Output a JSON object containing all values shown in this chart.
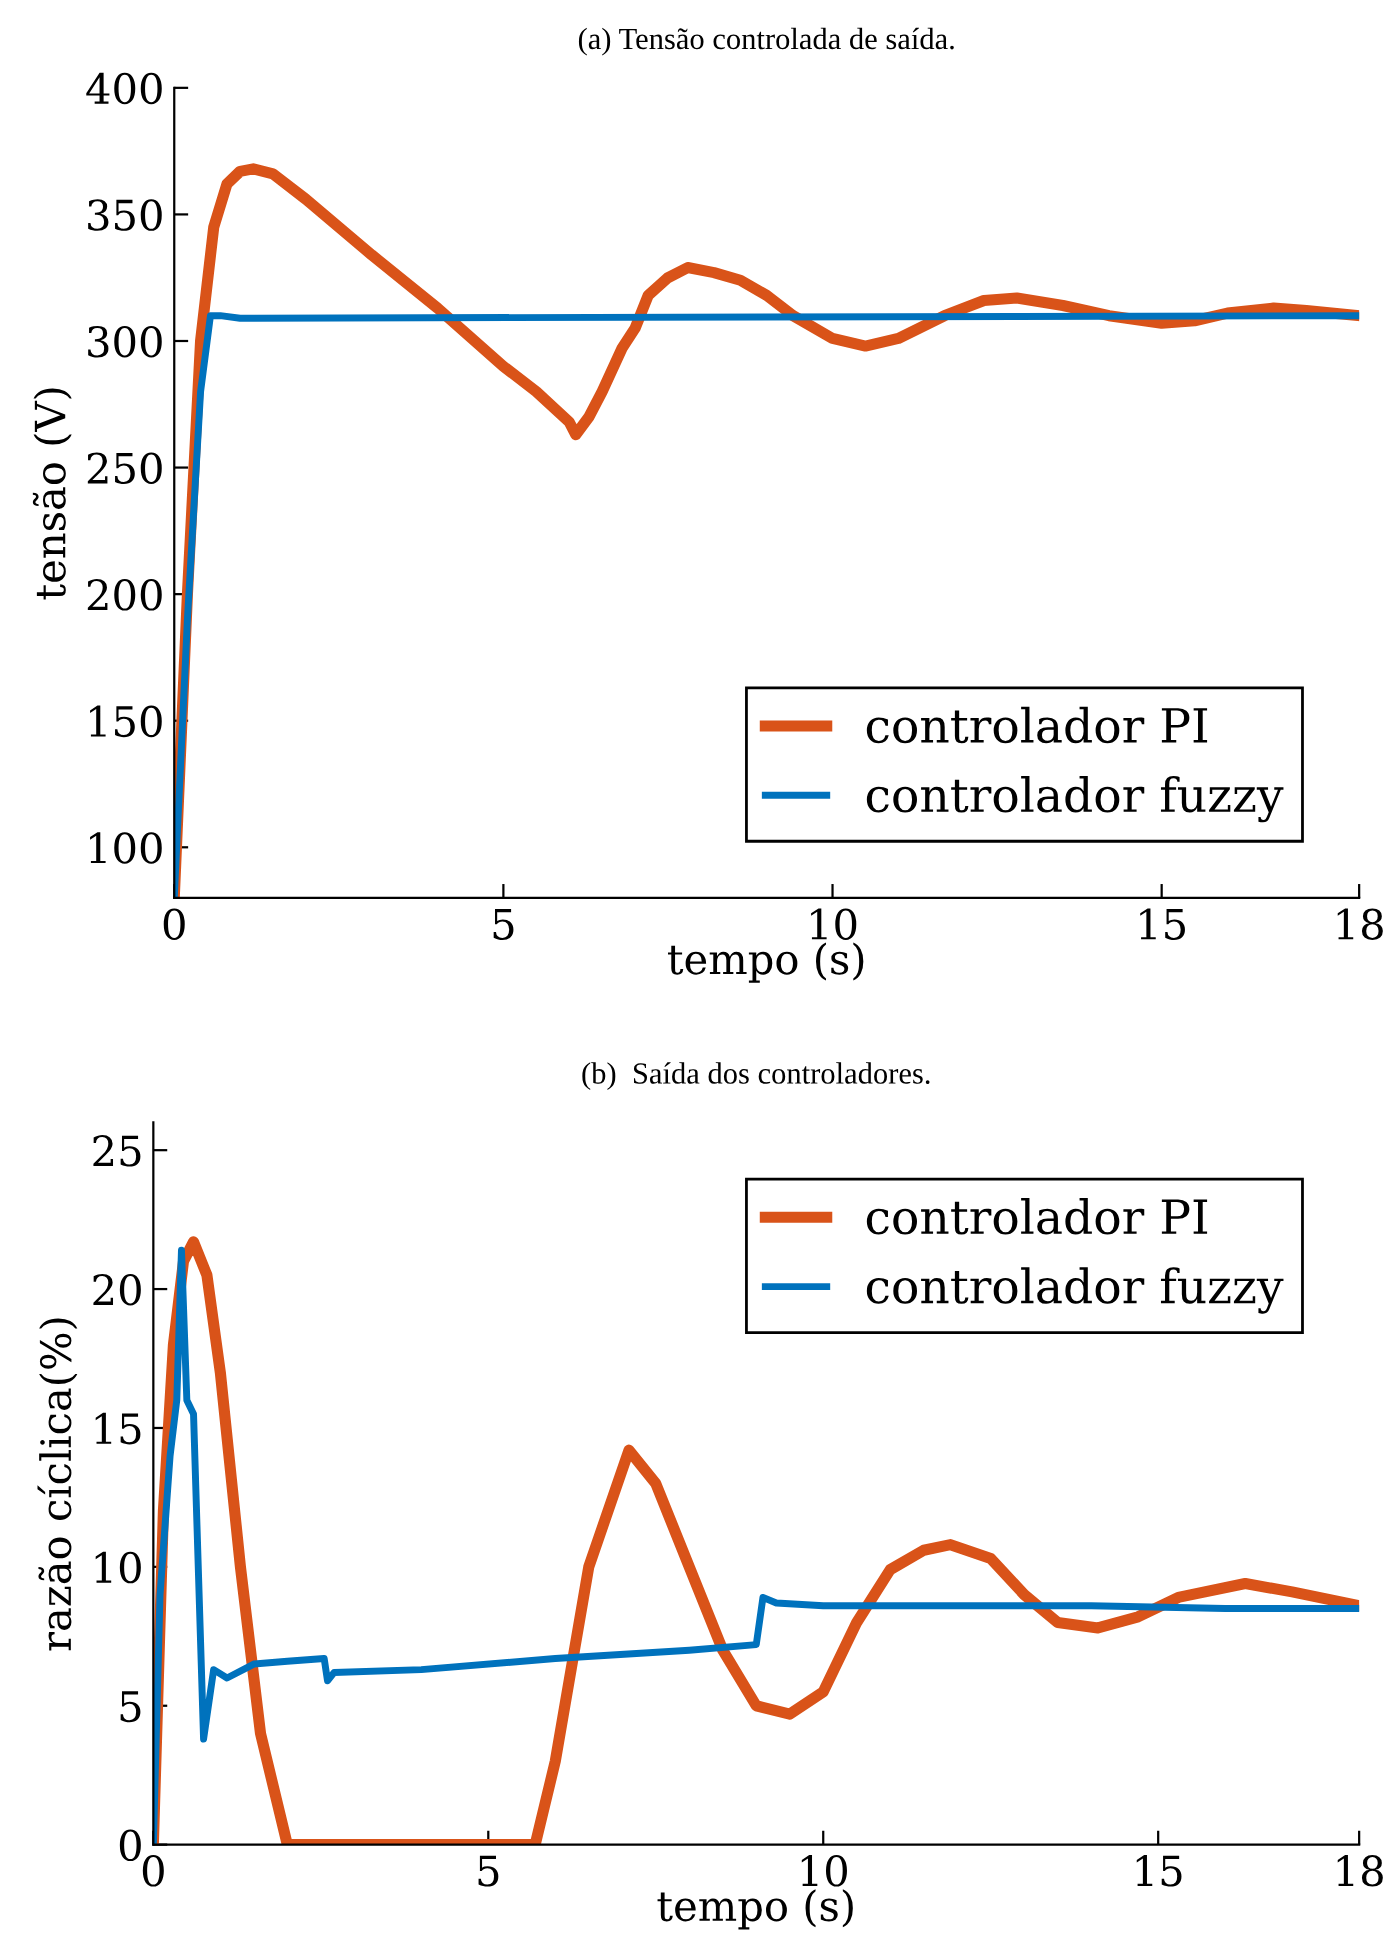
{
  "chart_data": [
    {
      "type": "line",
      "title": "(a) Tensão controlada de saída.",
      "xlabel": "tempo (s)",
      "ylabel": "tensão (V)",
      "xlim": [
        0,
        18
      ],
      "xticks": [
        0,
        5,
        10,
        15,
        18
      ],
      "ylim": [
        80,
        400
      ],
      "yticks": [
        100,
        150,
        200,
        250,
        300,
        350,
        400
      ],
      "grid": false,
      "legend": "bottom right",
      "series": [
        {
          "name": "controlador PI",
          "color": "#d95319",
          "x": [
            0,
            0.2,
            0.4,
            0.6,
            0.8,
            1.0,
            1.2,
            1.5,
            2,
            3,
            4,
            5,
            5.5,
            6,
            6.1,
            6.3,
            6.5,
            6.8,
            7,
            7.2,
            7.5,
            7.8,
            8.2,
            8.6,
            9,
            9.4,
            10,
            10.5,
            11,
            11.7,
            12.3,
            12.8,
            13.5,
            14.2,
            15,
            15.5,
            16,
            16.7,
            17.2,
            18
          ],
          "values": [
            80,
            200,
            300,
            345,
            362,
            367,
            368,
            366,
            356,
            334,
            313,
            290,
            280,
            268,
            263,
            270,
            280,
            297,
            305,
            318,
            325,
            329,
            327,
            324,
            318,
            310,
            301,
            298,
            301,
            310,
            316,
            317,
            314,
            310,
            307,
            308,
            311,
            313,
            312,
            310
          ]
        },
        {
          "name": "controlador fuzzy",
          "color": "#0072bd",
          "x": [
            0,
            0.2,
            0.4,
            0.55,
            0.7,
            1,
            18
          ],
          "values": [
            80,
            190,
            280,
            310,
            310,
            309,
            310
          ]
        }
      ]
    },
    {
      "type": "line",
      "title": "(b)  Saída dos controladores.",
      "xlabel": "tempo (s)",
      "ylabel": "razão cíclica(%)",
      "xlim": [
        0,
        18
      ],
      "xticks": [
        0,
        5,
        10,
        15,
        18
      ],
      "ylim": [
        0,
        26
      ],
      "yticks": [
        0,
        5,
        10,
        15,
        20,
        25
      ],
      "grid": false,
      "legend": "top right",
      "series": [
        {
          "name": "controlador PI",
          "color": "#d95319",
          "x": [
            0,
            0.15,
            0.3,
            0.45,
            0.6,
            0.8,
            1.0,
            1.3,
            1.6,
            2.0,
            5.7,
            6.0,
            6.5,
            7.1,
            7.5,
            8,
            8.5,
            9,
            9.5,
            10,
            10.5,
            11,
            11.5,
            11.9,
            12.5,
            13,
            13.5,
            14.1,
            14.7,
            15.3,
            16.3,
            17,
            18
          ],
          "values": [
            0,
            12,
            18,
            21,
            21.7,
            20.5,
            17,
            10,
            4,
            0,
            0,
            3,
            10,
            14.2,
            13,
            10,
            7,
            5,
            4.7,
            5.5,
            8,
            9.9,
            10.6,
            10.8,
            10.3,
            9,
            8,
            7.8,
            8.2,
            8.9,
            9.4,
            9.1,
            8.6
          ]
        },
        {
          "name": "controlador fuzzy",
          "color": "#0072bd",
          "x": [
            0,
            0.1,
            0.25,
            0.35,
            0.42,
            0.5,
            0.6,
            0.75,
            0.9,
            1.1,
            1.5,
            2.0,
            2.55,
            2.6,
            2.7,
            4,
            6,
            8,
            9.0,
            9.1,
            9.3,
            10,
            12,
            14,
            16,
            18
          ],
          "values": [
            0,
            9,
            14,
            16,
            21.4,
            16,
            15.5,
            3.8,
            6.3,
            6,
            6.5,
            6.6,
            6.7,
            5.9,
            6.2,
            6.3,
            6.7,
            7.0,
            7.2,
            8.9,
            8.7,
            8.6,
            8.6,
            8.6,
            8.5,
            8.5
          ]
        }
      ]
    }
  ]
}
